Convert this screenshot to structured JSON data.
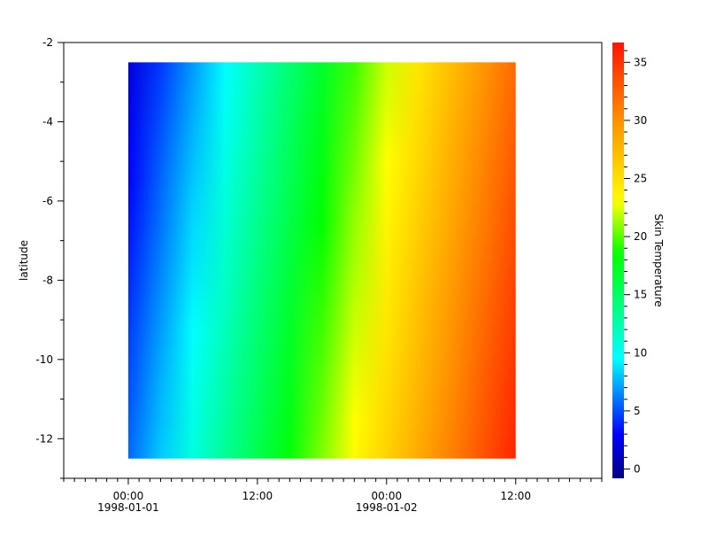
{
  "chart_data": {
    "type": "heatmap",
    "title": "",
    "xlabel": "",
    "ylabel": "latitude",
    "colorbar_label": "Skin Temperature",
    "x_unit": "hours since 1998-01-01 00:00",
    "x": [
      0,
      3,
      6,
      9,
      12,
      15,
      18,
      21,
      24,
      27,
      30,
      33,
      36
    ],
    "y": [
      -2.5,
      -3.5,
      -4.5,
      -5.5,
      -6.5,
      -7.5,
      -8.5,
      -9.5,
      -10.5,
      -11.5,
      -12.5
    ],
    "z": [
      [
        1.9,
        4.4,
        6.9,
        9.5,
        12.0,
        14.5,
        17.0,
        19.5,
        22.1,
        24.6,
        27.1,
        29.6,
        32.1
      ],
      [
        2.3,
        4.8,
        7.3,
        9.8,
        12.4,
        14.9,
        17.4,
        19.9,
        22.4,
        25.0,
        27.5,
        30.0,
        32.5
      ],
      [
        2.7,
        5.2,
        7.7,
        10.2,
        12.7,
        15.3,
        17.8,
        20.3,
        22.8,
        25.3,
        27.9,
        30.4,
        32.9
      ],
      [
        3.0,
        5.6,
        8.1,
        10.6,
        13.1,
        15.6,
        18.2,
        20.7,
        23.2,
        25.7,
        28.2,
        30.8,
        33.3
      ],
      [
        3.4,
        5.9,
        8.5,
        11.0,
        13.5,
        16.0,
        18.5,
        21.1,
        23.6,
        26.1,
        28.6,
        31.1,
        33.7
      ],
      [
        3.8,
        6.3,
        8.8,
        11.4,
        13.9,
        16.4,
        18.9,
        21.4,
        24.0,
        26.5,
        29.0,
        31.5,
        34.0
      ],
      [
        4.2,
        6.7,
        9.2,
        11.7,
        14.3,
        16.8,
        19.3,
        21.8,
        24.3,
        26.9,
        29.4,
        31.9,
        34.4
      ],
      [
        4.6,
        7.1,
        9.6,
        12.1,
        14.6,
        17.2,
        19.7,
        22.2,
        24.7,
        27.2,
        29.8,
        32.3,
        34.8
      ],
      [
        4.9,
        7.5,
        10.0,
        12.5,
        15.0,
        17.5,
        20.1,
        22.6,
        25.1,
        27.6,
        30.1,
        32.7,
        35.2
      ],
      [
        5.3,
        7.8,
        10.4,
        12.9,
        15.4,
        17.9,
        20.4,
        23.0,
        25.5,
        28.0,
        30.5,
        33.0,
        35.6
      ],
      [
        5.7,
        8.2,
        10.7,
        13.3,
        15.8,
        18.3,
        20.8,
        23.3,
        25.9,
        28.4,
        30.9,
        33.4,
        35.9
      ]
    ],
    "xlim_hours": [
      -6,
      44
    ],
    "ylim": [
      -13,
      -2
    ],
    "clim": [
      -0.8,
      36.7
    ],
    "colormap": [
      {
        "value": -0.8,
        "color": "#000080"
      },
      {
        "value": 3.0,
        "color": "#0000ff"
      },
      {
        "value": 9.5,
        "color": "#00ffff"
      },
      {
        "value": 18.5,
        "color": "#00ff00"
      },
      {
        "value": 23.0,
        "color": "#ffff00"
      },
      {
        "value": 30.0,
        "color": "#ff9000"
      },
      {
        "value": 36.7,
        "color": "#ff1500"
      }
    ],
    "x_ticks": [
      {
        "hours": 0,
        "time": "00:00",
        "date": "1998-01-01"
      },
      {
        "hours": 12,
        "time": "12:00",
        "date": ""
      },
      {
        "hours": 24,
        "time": "00:00",
        "date": "1998-01-02"
      },
      {
        "hours": 36,
        "time": "12:00",
        "date": ""
      }
    ],
    "y_ticks": [
      "-2",
      "-4",
      "-6",
      "-8",
      "-10",
      "-12"
    ],
    "y_tick_values": [
      -2,
      -4,
      -6,
      -8,
      -10,
      -12
    ],
    "colorbar_ticks": [
      "0",
      "5",
      "10",
      "15",
      "20",
      "25",
      "30",
      "35"
    ],
    "colorbar_tick_values": [
      0,
      5,
      10,
      15,
      20,
      25,
      30,
      35
    ],
    "grid": false
  }
}
